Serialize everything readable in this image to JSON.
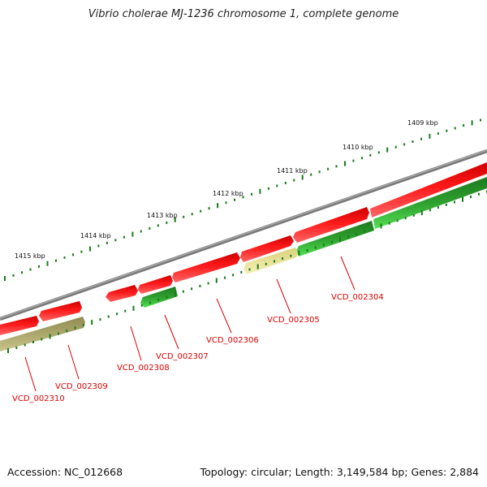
{
  "title": "Vibrio cholerae MJ-1236 chromosome 1, complete genome",
  "accession": "Accession: NC_012668",
  "summary": "Topology: circular; Length: 3,149,584 bp; Genes: 2,884",
  "colors": {
    "backbone": "#7a7a7a",
    "forward_gene": "#ee1111",
    "reverse_gene_dark": "#2a8a2a",
    "reverse_gene_light": "#44dd44",
    "khaki_gene": "#b5b070",
    "pale_gene": "#eee59a",
    "ticks": "#1a7a1a",
    "label": "#dd0000"
  },
  "scale_labels": [
    "1409 kbp",
    "1410 kbp",
    "1411 kbp",
    "1412 kbp",
    "1413 kbp",
    "1414 kbp",
    "1415 kbp"
  ],
  "genes": [
    {
      "label": "VCD_002304",
      "track": "forward"
    },
    {
      "label": "VCD_002305",
      "track": "reverse"
    },
    {
      "label": "VCD_002306",
      "track": "forward"
    },
    {
      "label": "VCD_002307",
      "track": "reverse"
    },
    {
      "label": "VCD_002308",
      "track": "forward"
    },
    {
      "label": "VCD_002309",
      "track": "reverse"
    },
    {
      "label": "VCD_002310",
      "track": "forward"
    }
  ]
}
